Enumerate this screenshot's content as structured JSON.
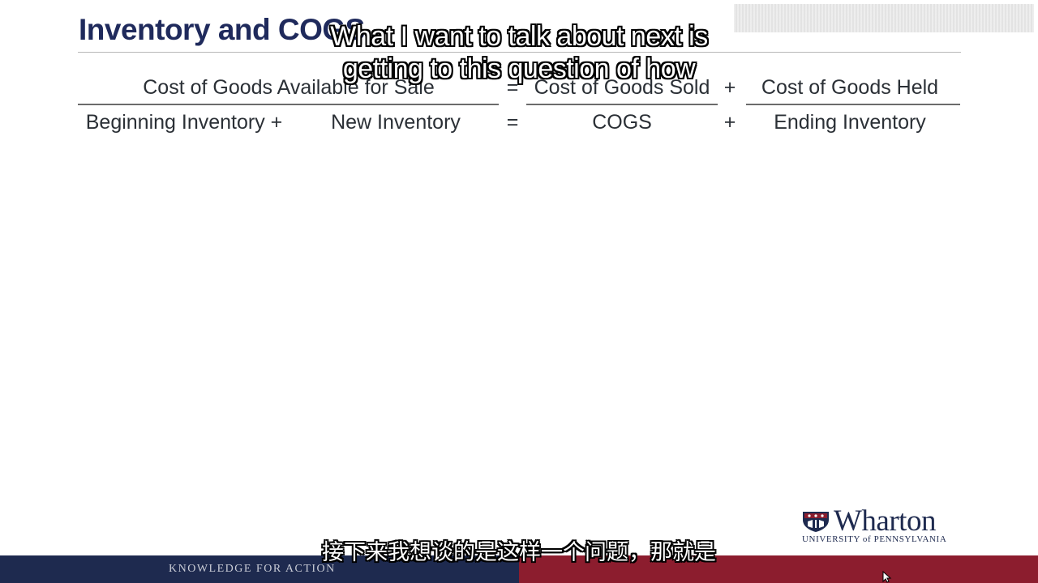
{
  "slide": {
    "title": "Inventory and COGS"
  },
  "equation": {
    "row1": {
      "left": "Cost of Goods Available for Sale",
      "equals": "=",
      "middle": "Cost of Goods Sold",
      "plus": "+",
      "right": "Cost of Goods Held"
    },
    "row2": {
      "beginning": "Beginning Inventory +",
      "new": "New Inventory",
      "equals": "=",
      "cogs": "COGS",
      "plus": "+",
      "ending": "Ending Inventory"
    }
  },
  "subtitles": {
    "english_line1": "What I want to talk about next is",
    "english_line2": "getting to this question of how",
    "chinese": "接下来我想谈的是这样一个问题，那就是"
  },
  "footer": {
    "tagline": "KNOWLEDGE FOR ACTION",
    "left_color": "#1e2a4f",
    "right_color": "#8c1d2e"
  },
  "logo": {
    "wordmark": "Wharton",
    "subline": "UNIVERSITY of PENNSYLVANIA",
    "icon": "penn-shield-icon"
  },
  "colors": {
    "title": "#1f2a5c",
    "body_text": "#2b3036"
  }
}
